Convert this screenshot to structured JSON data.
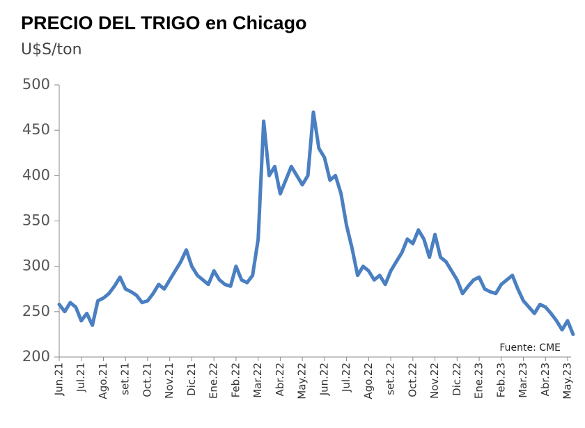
{
  "chart_data": {
    "type": "line",
    "title": "PRECIO DEL TRIGO en Chicago",
    "subtitle": "U$S/ton",
    "source": "Fuente: CME",
    "categories": [
      "Jun.21",
      null,
      null,
      null,
      "Jul.21",
      null,
      null,
      null,
      "Ago.21",
      null,
      null,
      null,
      "set.21",
      null,
      null,
      null,
      "Oct.21",
      null,
      null,
      null,
      "Nov.21",
      null,
      null,
      null,
      "Dic.21",
      null,
      null,
      null,
      "Ene.22",
      null,
      null,
      null,
      "Feb.22",
      null,
      null,
      null,
      "Mar.22",
      null,
      null,
      null,
      "Abr.22",
      null,
      null,
      null,
      "May.22",
      null,
      null,
      null,
      "Jun.22",
      null,
      null,
      null,
      "Jul.22",
      null,
      null,
      null,
      "Ago.22",
      null,
      null,
      null,
      "set.22",
      null,
      null,
      null,
      "Oct.22",
      null,
      null,
      null,
      "Nov.22",
      null,
      null,
      null,
      "Dic.22",
      null,
      null,
      null,
      "Ene.23",
      null,
      null,
      null,
      "Feb.23",
      null,
      null,
      null,
      "Mar.23",
      null,
      null,
      null,
      "Abr.23",
      null,
      null,
      null,
      "May.23",
      null
    ],
    "series": [
      {
        "name": "Trigo",
        "color": "#4a7fc1",
        "values": [
          258,
          250,
          260,
          255,
          240,
          248,
          235,
          262,
          265,
          270,
          278,
          288,
          275,
          272,
          268,
          260,
          262,
          270,
          280,
          275,
          285,
          295,
          305,
          318,
          300,
          290,
          285,
          280,
          295,
          285,
          280,
          278,
          300,
          285,
          282,
          290,
          330,
          460,
          400,
          410,
          380,
          395,
          410,
          400,
          390,
          400,
          470,
          430,
          420,
          395,
          400,
          380,
          345,
          320,
          290,
          300,
          295,
          285,
          290,
          280,
          295,
          305,
          315,
          330,
          325,
          340,
          330,
          310,
          335,
          310,
          305,
          295,
          285,
          270,
          278,
          285,
          288,
          275,
          272,
          270,
          280,
          285,
          290,
          275,
          262,
          255,
          248,
          258,
          255,
          248,
          240,
          230,
          240,
          225
        ]
      }
    ],
    "ylim": [
      200,
      500
    ],
    "yticks": [
      200,
      250,
      300,
      350,
      400,
      450,
      500
    ],
    "grid": false
  }
}
